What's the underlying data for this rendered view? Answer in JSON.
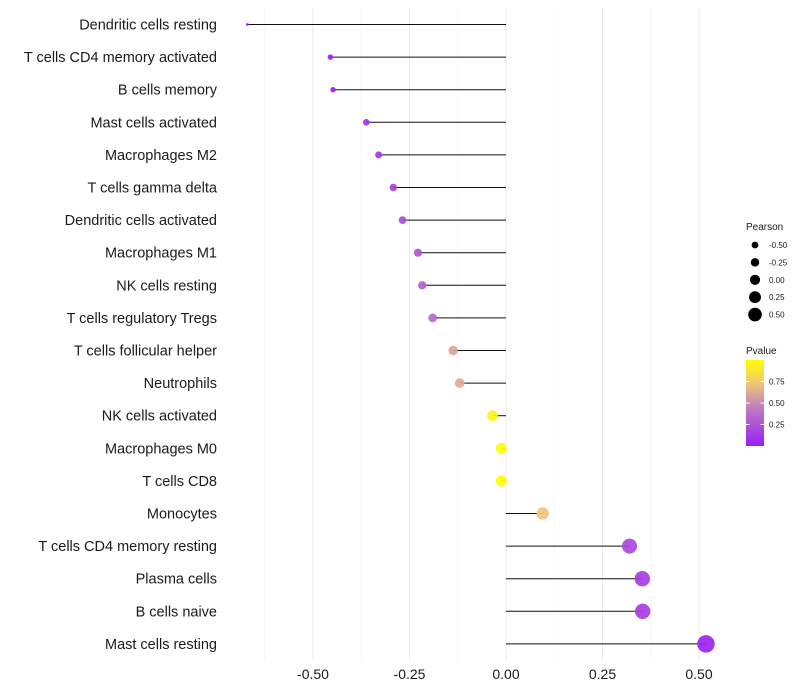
{
  "chart_data": {
    "type": "lollipop",
    "title": "",
    "xlabel": "",
    "ylabel": "",
    "xlim": [
      -0.75,
      0.55
    ],
    "x_ticks": [
      -0.5,
      -0.25,
      0.0,
      0.25,
      0.5
    ],
    "x_tick_labels": [
      "-0.50",
      "-0.25",
      "0.00",
      "0.25",
      "0.50"
    ],
    "grid": true,
    "categories": [
      "Dendritic cells resting",
      "T cells CD4 memory activated",
      "B cells memory",
      "Mast cells activated",
      "Macrophages M2",
      "T cells gamma delta",
      "Dendritic cells activated",
      "Macrophages M1",
      "NK cells resting",
      "T cells regulatory  Tregs ",
      "T cells follicular helper",
      "Neutrophils",
      "NK cells activated",
      "Macrophages M0",
      "T cells CD8",
      "Monocytes",
      "T cells CD4 memory resting",
      "Plasma cells",
      "B cells naive",
      "Mast cells resting"
    ],
    "values": [
      -0.67,
      -0.455,
      -0.448,
      -0.362,
      -0.33,
      -0.292,
      -0.268,
      -0.228,
      -0.217,
      -0.19,
      -0.137,
      -0.12,
      -0.035,
      -0.012,
      -0.012,
      0.095,
      0.32,
      0.353,
      0.354,
      0.518
    ],
    "pvalues": [
      0.01,
      0.02,
      0.03,
      0.1,
      0.12,
      0.17,
      0.22,
      0.27,
      0.3,
      0.35,
      0.6,
      0.63,
      0.95,
      0.99,
      0.99,
      0.72,
      0.2,
      0.15,
      0.15,
      0.03
    ],
    "legends": {
      "size": {
        "title": "Pearson",
        "labels": [
          "-0.50",
          "-0.25",
          "0.00",
          "0.25",
          "0.50"
        ],
        "values": [
          -0.5,
          -0.25,
          0.0,
          0.25,
          0.5
        ]
      },
      "color": {
        "title": "Pvalue",
        "labels": [
          "0.75",
          "0.50",
          "0.25"
        ],
        "values": [
          0.75,
          0.5,
          0.25
        ],
        "range": [
          0.0,
          1.0
        ],
        "gradient_colors": [
          "#9A1CF5",
          "#C07FC0",
          "#EFC47A",
          "#FFFF00"
        ]
      }
    }
  }
}
